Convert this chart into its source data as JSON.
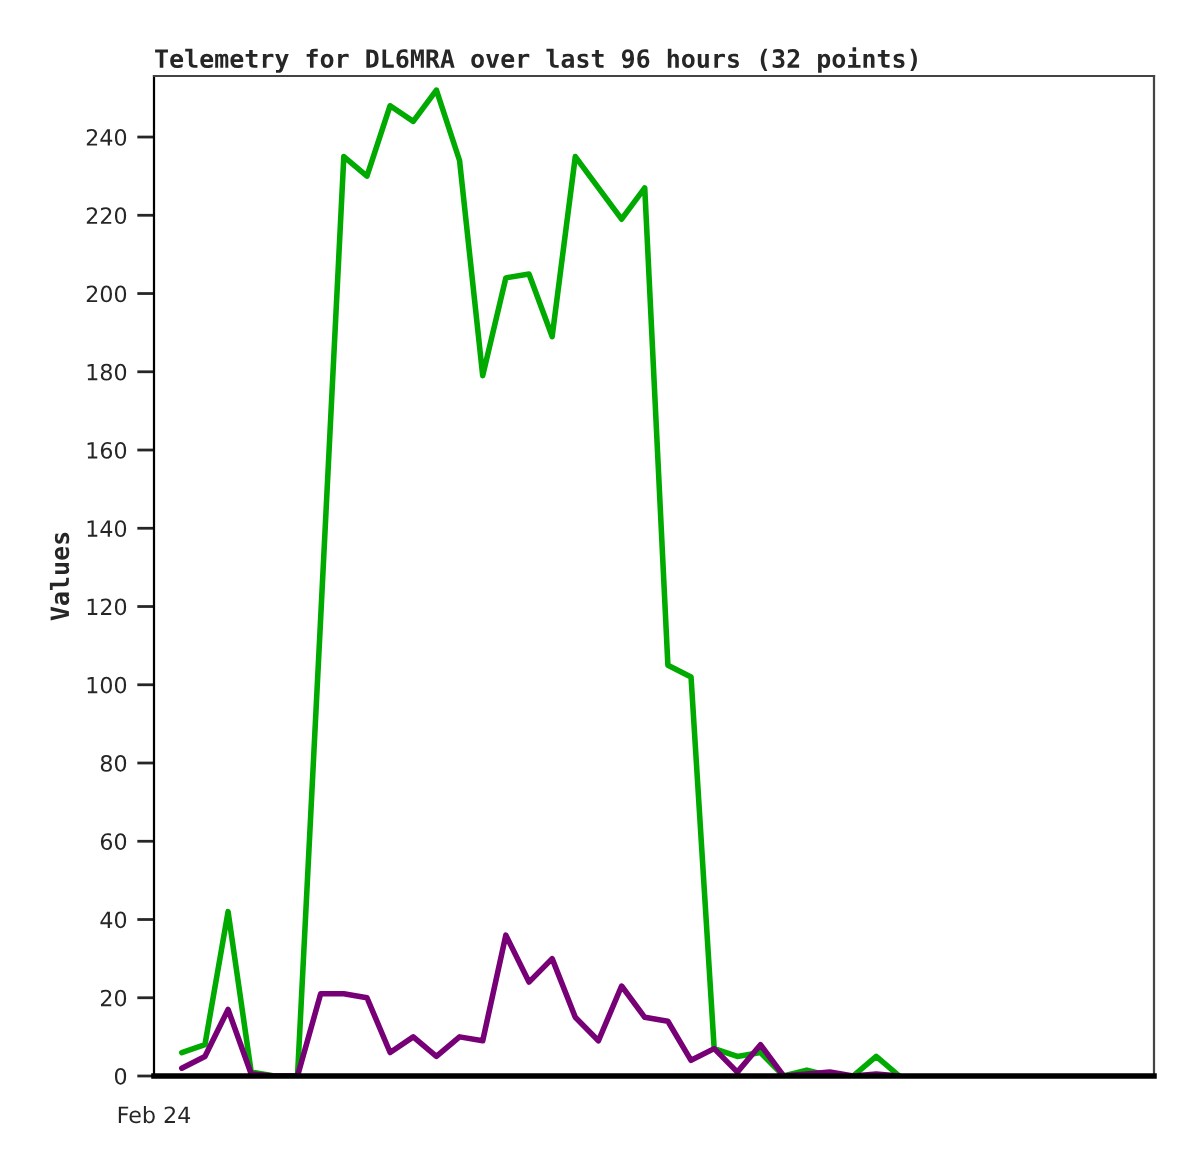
{
  "chart_data": {
    "type": "line",
    "title": "Telemetry for DL6MRA over last 96 hours (32 points)",
    "ylabel": "Values",
    "categories": [
      null,
      null,
      null,
      null,
      null,
      null,
      null,
      null,
      null,
      null,
      null,
      null,
      null,
      null,
      null,
      null,
      null,
      null,
      null,
      null,
      null,
      null,
      null,
      null,
      null,
      null,
      null,
      null,
      null,
      null,
      null,
      null
    ],
    "series": [
      {
        "color": "#00aa00",
        "values": [
          6,
          8,
          42,
          1,
          0,
          0,
          117,
          235,
          230,
          248,
          244,
          252,
          234,
          179,
          204,
          205,
          189,
          235,
          227,
          219,
          227,
          105,
          102,
          7,
          5,
          6,
          0,
          1.5,
          0,
          0,
          5,
          0
        ]
      },
      {
        "color": "#770077",
        "values": [
          2,
          5,
          17,
          0.5,
          0,
          0,
          21,
          21,
          20,
          6,
          10,
          5,
          10,
          9,
          36,
          24,
          30,
          15,
          9,
          23,
          15,
          14,
          4,
          7,
          1,
          8,
          0,
          0.5,
          1,
          0,
          0.5,
          0
        ]
      }
    ],
    "annotations": [
      "Feb 24"
    ],
    "ylim": [
      0,
      255.6
    ],
    "yticks": [
      0,
      20,
      40,
      60,
      80,
      100,
      120,
      140,
      160,
      180,
      200,
      220,
      240
    ],
    "grid": false,
    "legend": false,
    "marker": "none",
    "line_style": "solid"
  }
}
